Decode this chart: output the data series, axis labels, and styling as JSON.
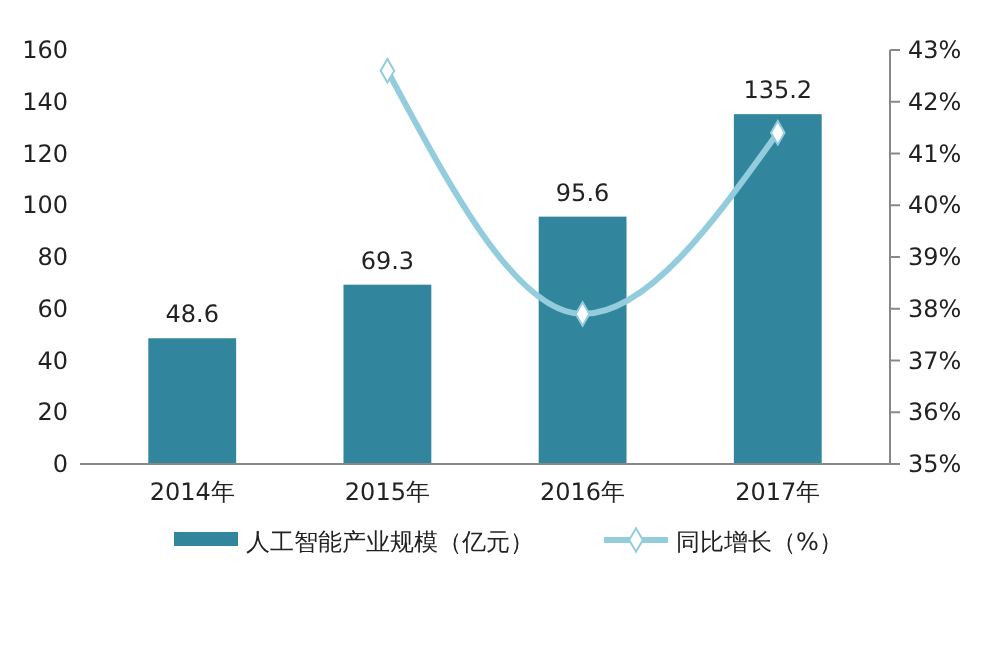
{
  "chart_data": {
    "type": "bar",
    "categories": [
      "2014年",
      "2015年",
      "2016年",
      "2017年"
    ],
    "series": [
      {
        "name": "人工智能产业规模（亿元）",
        "color": "#31859c",
        "values": [
          48.6,
          69.3,
          95.6,
          135.2
        ],
        "value_labels": [
          "48.6",
          "69.3",
          "95.6",
          "135.2"
        ]
      },
      {
        "name": "同比增长（%）",
        "type": "line",
        "axis": "y2",
        "color": "#93cddd",
        "values": [
          null,
          42.6,
          37.9,
          41.4
        ],
        "marker": "diamond"
      }
    ],
    "ylim": [
      0,
      160
    ],
    "yticks": [
      0,
      20,
      40,
      60,
      80,
      100,
      120,
      140,
      160
    ],
    "y2lim": [
      35,
      43
    ],
    "y2ticks": [
      {
        "value": 35,
        "label": "35%"
      },
      {
        "value": 36,
        "label": "36%"
      },
      {
        "value": 37,
        "label": "37%"
      },
      {
        "value": 38,
        "label": "38%"
      },
      {
        "value": 39,
        "label": "39%"
      },
      {
        "value": 40,
        "label": "40%"
      },
      {
        "value": 41,
        "label": "41%"
      },
      {
        "value": 42,
        "label": "42%"
      },
      {
        "value": 43,
        "label": "43%"
      }
    ],
    "grid": false,
    "legend": "bottom"
  }
}
